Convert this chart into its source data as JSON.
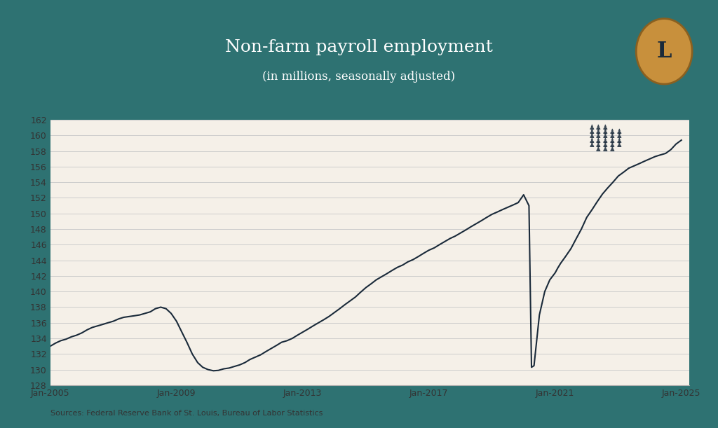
{
  "title": "Non-farm payroll employment",
  "subtitle": "(in millions, seasonally adjusted)",
  "source_text": "Sources: Federal Reserve Bank of St. Louis, Bureau of Labor Statistics",
  "bg_outer": "#2e7272",
  "bg_plot": "#f5f0e8",
  "line_color": "#1a2a3a",
  "title_color": "#ffffff",
  "ylabel_values": [
    128,
    130,
    132,
    134,
    136,
    138,
    140,
    142,
    144,
    146,
    148,
    150,
    152,
    154,
    156,
    158,
    160,
    162
  ],
  "ylim": [
    128,
    162
  ],
  "xlim_start": 2005.0,
  "xlim_end": 2025.25,
  "xtick_labels": [
    "Jan-2005",
    "Jan-2009",
    "Jan-2013",
    "Jan-2017",
    "Jan-2021",
    "Jan-2025"
  ],
  "xtick_positions": [
    2005.0,
    2009.0,
    2013.0,
    2017.0,
    2021.0,
    2025.0
  ],
  "logo_bg": "#1a2a3a",
  "logo_circle": "#c8903c",
  "logo_letter": "L",
  "data": {
    "2005.00": 133.0,
    "2005.17": 133.4,
    "2005.33": 133.7,
    "2005.50": 133.9,
    "2005.67": 134.2,
    "2005.83": 134.4,
    "2006.00": 134.7,
    "2006.17": 135.1,
    "2006.33": 135.4,
    "2006.50": 135.6,
    "2006.67": 135.8,
    "2006.83": 136.0,
    "2007.00": 136.2,
    "2007.17": 136.5,
    "2007.33": 136.7,
    "2007.50": 136.8,
    "2007.67": 136.9,
    "2007.83": 137.0,
    "2008.00": 137.2,
    "2008.17": 137.4,
    "2008.33": 137.8,
    "2008.50": 138.0,
    "2008.67": 137.8,
    "2008.83": 137.2,
    "2009.00": 136.2,
    "2009.17": 134.8,
    "2009.33": 133.5,
    "2009.50": 132.0,
    "2009.67": 130.9,
    "2009.83": 130.3,
    "2010.00": 130.0,
    "2010.17": 129.85,
    "2010.33": 129.9,
    "2010.50": 130.1,
    "2010.67": 130.2,
    "2010.83": 130.4,
    "2011.00": 130.6,
    "2011.17": 130.9,
    "2011.33": 131.3,
    "2011.50": 131.6,
    "2011.67": 131.9,
    "2011.83": 132.3,
    "2012.00": 132.7,
    "2012.17": 133.1,
    "2012.33": 133.5,
    "2012.50": 133.7,
    "2012.67": 134.0,
    "2012.83": 134.4,
    "2013.00": 134.8,
    "2013.17": 135.2,
    "2013.33": 135.6,
    "2013.50": 136.0,
    "2013.67": 136.4,
    "2013.83": 136.8,
    "2014.00": 137.3,
    "2014.17": 137.8,
    "2014.33": 138.3,
    "2014.50": 138.8,
    "2014.67": 139.3,
    "2014.83": 139.9,
    "2015.00": 140.5,
    "2015.17": 141.0,
    "2015.33": 141.5,
    "2015.50": 141.9,
    "2015.67": 142.3,
    "2015.83": 142.7,
    "2016.00": 143.1,
    "2016.17": 143.4,
    "2016.33": 143.8,
    "2016.50": 144.1,
    "2016.67": 144.5,
    "2016.83": 144.9,
    "2017.00": 145.3,
    "2017.17": 145.6,
    "2017.33": 146.0,
    "2017.50": 146.4,
    "2017.67": 146.8,
    "2017.83": 147.1,
    "2018.00": 147.5,
    "2018.17": 147.9,
    "2018.33": 148.3,
    "2018.50": 148.7,
    "2018.67": 149.1,
    "2018.83": 149.5,
    "2019.00": 149.9,
    "2019.17": 150.2,
    "2019.33": 150.5,
    "2019.50": 150.8,
    "2019.67": 151.1,
    "2019.83": 151.4,
    "2020.00": 152.4,
    "2020.17": 151.0,
    "2020.25": 130.3,
    "2020.33": 130.5,
    "2020.50": 137.0,
    "2020.67": 140.0,
    "2020.83": 141.5,
    "2021.00": 142.4,
    "2021.08": 143.0,
    "2021.17": 143.6,
    "2021.33": 144.5,
    "2021.50": 145.5,
    "2021.67": 146.8,
    "2021.83": 148.0,
    "2022.00": 149.5,
    "2022.17": 150.5,
    "2022.33": 151.5,
    "2022.50": 152.5,
    "2022.67": 153.3,
    "2022.83": 154.0,
    "2023.00": 154.8,
    "2023.17": 155.3,
    "2023.33": 155.8,
    "2023.50": 156.1,
    "2023.67": 156.4,
    "2023.83": 156.7,
    "2024.00": 157.0,
    "2024.17": 157.3,
    "2024.33": 157.5,
    "2024.50": 157.7,
    "2024.67": 158.2,
    "2024.83": 158.9,
    "2025.00": 159.4
  }
}
